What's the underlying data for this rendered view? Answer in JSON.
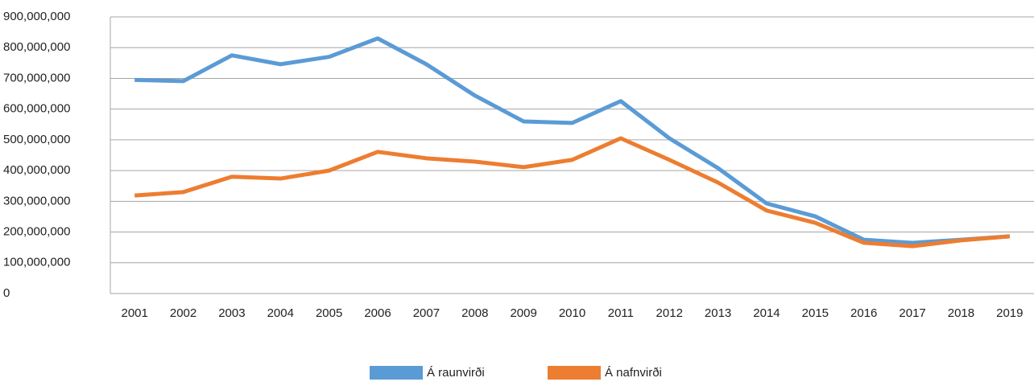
{
  "chart_data": {
    "type": "line",
    "categories": [
      "2001",
      "2002",
      "2003",
      "2004",
      "2005",
      "2006",
      "2007",
      "2008",
      "2009",
      "2010",
      "2011",
      "2012",
      "2013",
      "2014",
      "2015",
      "2016",
      "2017",
      "2018",
      "2019"
    ],
    "series": [
      {
        "name": "Á raunvirði",
        "color": "#5b9bd5",
        "values": [
          695000000,
          691000000,
          775000000,
          746000000,
          770000000,
          830000000,
          746000000,
          644000000,
          560000000,
          555000000,
          626000000,
          505000000,
          408000000,
          293000000,
          251000000,
          175000000,
          165000000,
          175000000,
          186000000
        ]
      },
      {
        "name": "Á nafnvirði",
        "color": "#ed7d31",
        "values": [
          319000000,
          330000000,
          380000000,
          374000000,
          400000000,
          461000000,
          440000000,
          429000000,
          411000000,
          435000000,
          505000000,
          435000000,
          361000000,
          270000000,
          230000000,
          165000000,
          154000000,
          173000000,
          186000000
        ]
      }
    ],
    "ylim": [
      0,
      900000000
    ],
    "yticks": [
      0,
      {
        "value": 100000000,
        "label": "100,000,000"
      },
      {
        "value": 200000000,
        "label": "200,000,000"
      },
      {
        "value": 300000000,
        "label": "300,000,000"
      },
      {
        "value": 400000000,
        "label": "400,000,000"
      },
      {
        "value": 500000000,
        "label": "500,000,000"
      },
      {
        "value": 600000000,
        "label": "600,000,000"
      },
      {
        "value": 700000000,
        "label": "700,000,000"
      },
      {
        "value": 800000000,
        "label": "800,000,000"
      },
      {
        "value": 900000000,
        "label": "900,000,000"
      }
    ],
    "grid": true,
    "legend": "bottom"
  }
}
